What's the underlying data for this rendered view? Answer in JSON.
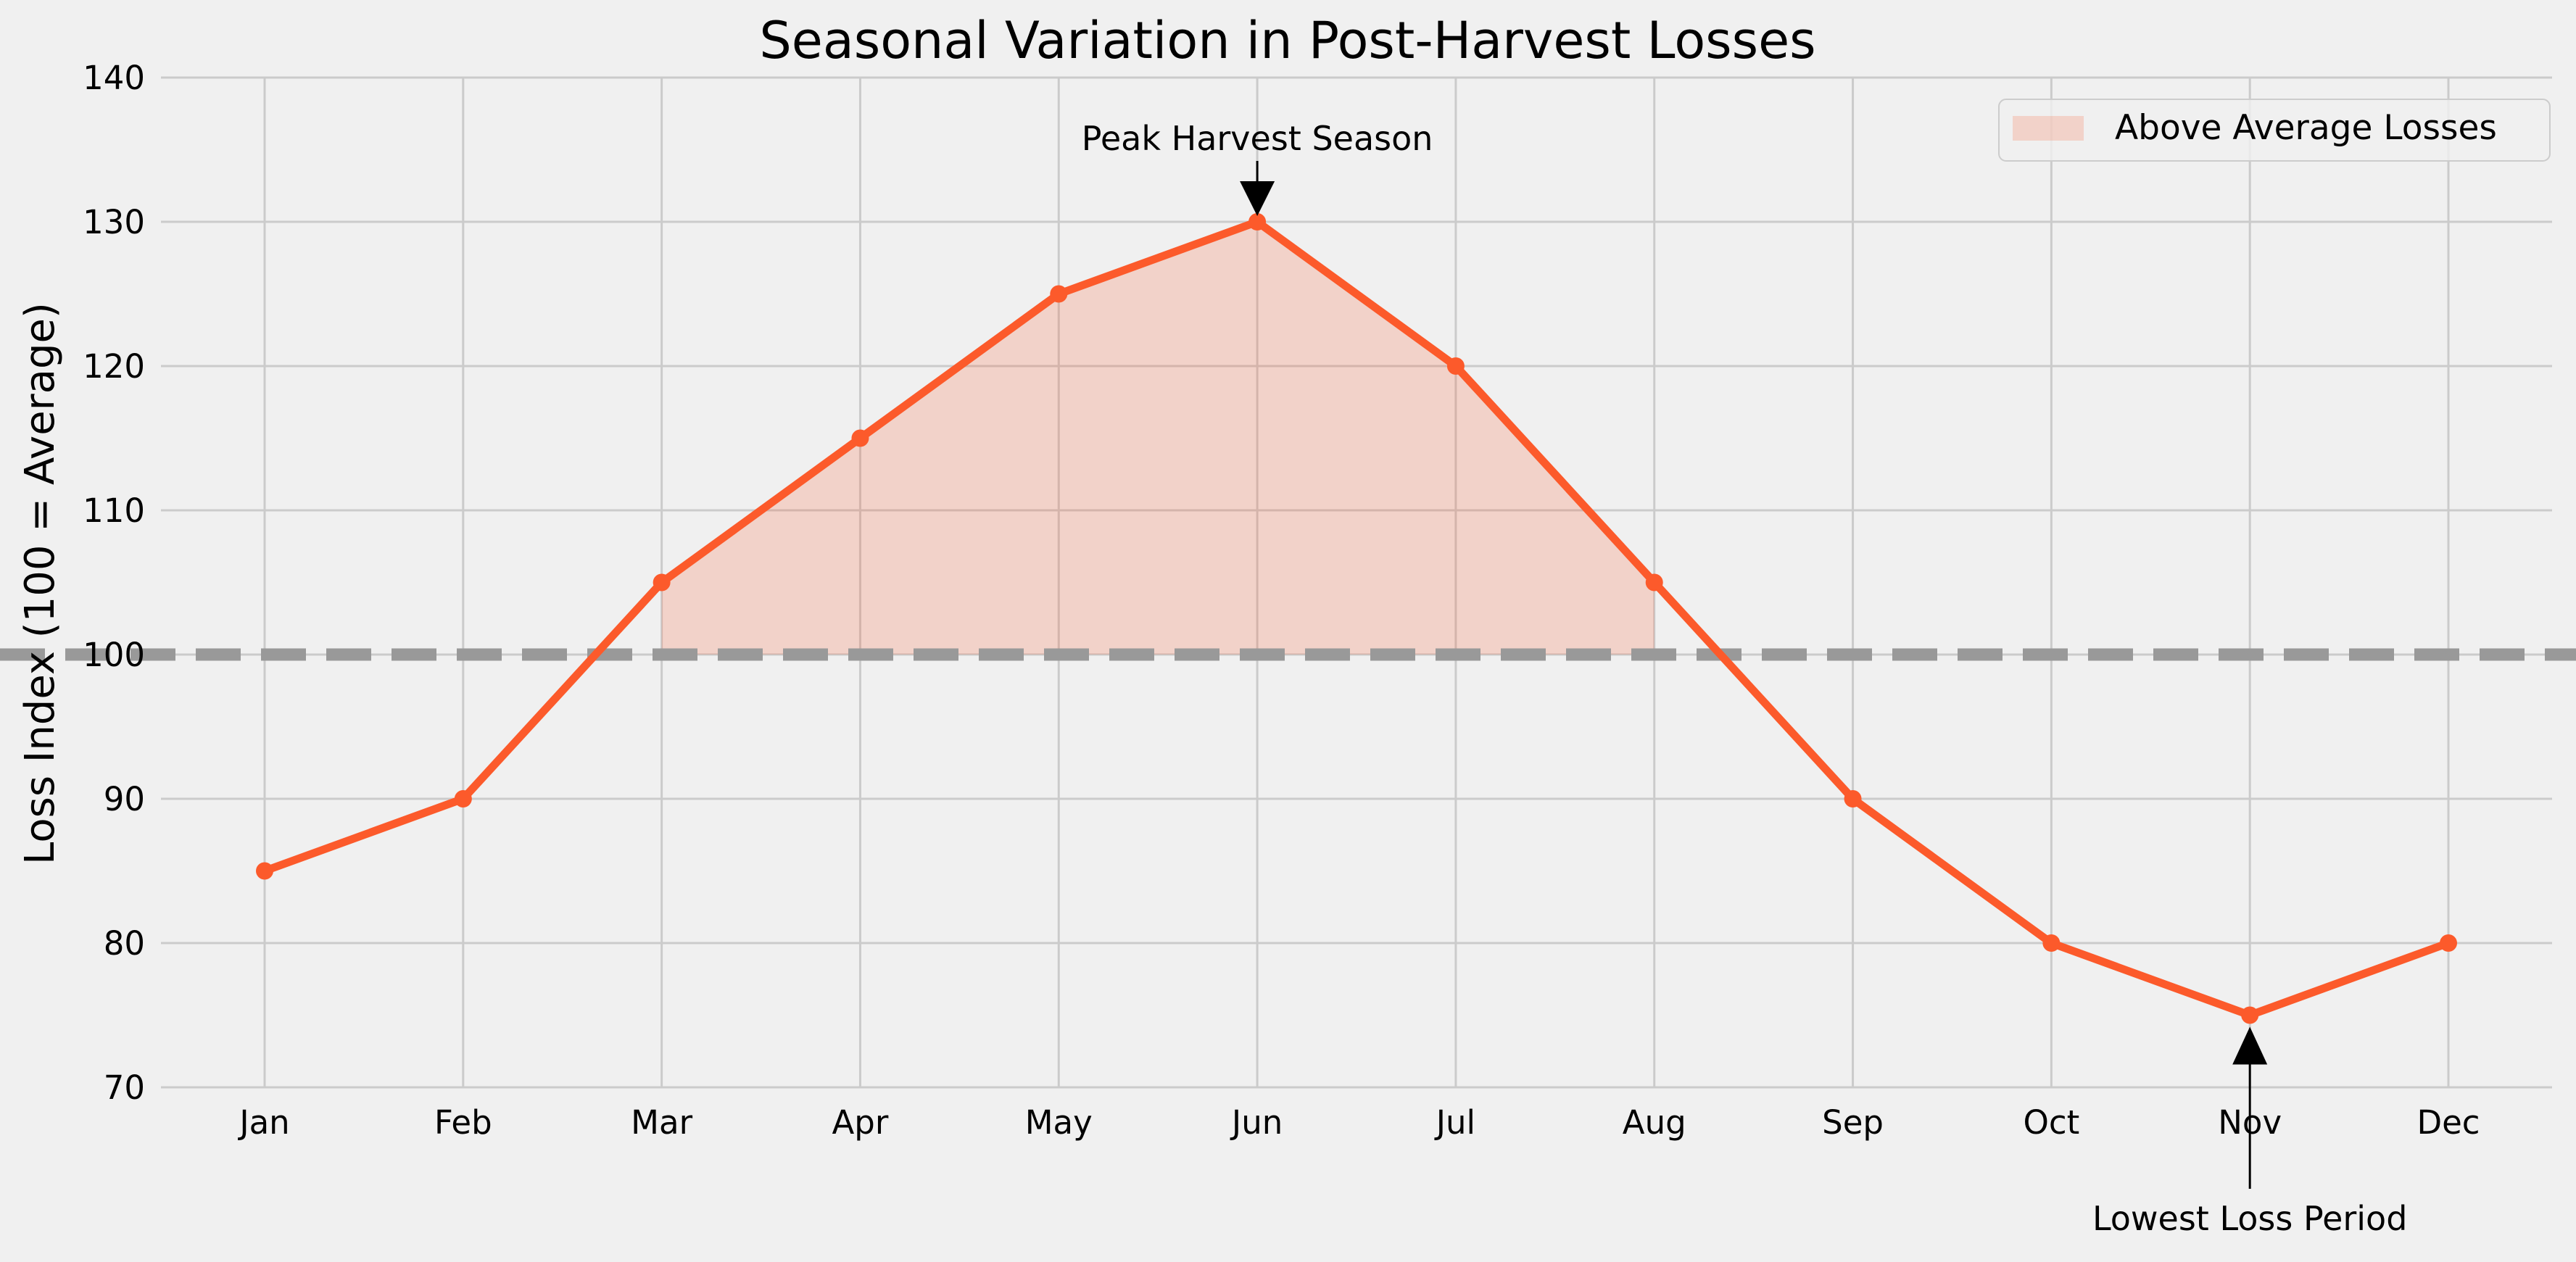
{
  "chart_data": {
    "type": "line",
    "title": "Seasonal Variation in Post-Harvest Losses",
    "xlabel": "",
    "ylabel": "Loss Index (100 = Average)",
    "categories": [
      "Jan",
      "Feb",
      "Mar",
      "Apr",
      "May",
      "Jun",
      "Jul",
      "Aug",
      "Sep",
      "Oct",
      "Nov",
      "Dec"
    ],
    "series": [
      {
        "values": [
          85,
          90,
          105,
          115,
          125,
          130,
          120,
          105,
          90,
          80,
          75,
          80
        ],
        "color": "#fc5a2b"
      }
    ],
    "ylim": [
      70,
      140
    ],
    "yticks": [
      70,
      80,
      90,
      100,
      110,
      120,
      130,
      140
    ],
    "reference_line": {
      "y": 100,
      "style": "dashed",
      "color": "#999999"
    },
    "fill_region": {
      "label": "Above Average Losses",
      "from_category": "Mar",
      "to_category": "Aug",
      "baseline": 100,
      "color": "#fc5a2b",
      "opacity": 0.2
    },
    "annotations": [
      {
        "text": "Peak Harvest Season",
        "category": "Jun",
        "value": 130,
        "placement": "above"
      },
      {
        "text": "Lowest Loss Period",
        "category": "Nov",
        "value": 75,
        "placement": "below"
      }
    ],
    "legend": {
      "position": "top-right",
      "entries": [
        "Above Average Losses"
      ]
    },
    "grid": true,
    "background": "#f0f0f0",
    "grid_color": "#cbcbcb"
  }
}
